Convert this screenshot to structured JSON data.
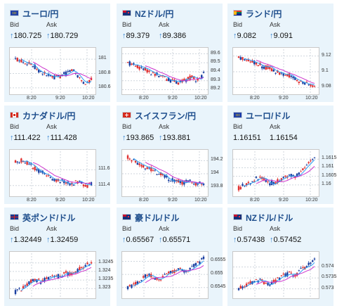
{
  "labels": {
    "bid": "Bid",
    "ask": "Ask"
  },
  "arrow": "↑",
  "colors": {
    "title": "#1d4d8c",
    "card_bg": "#e9f4fb",
    "ma_short": "#2a9df4",
    "ma_long": "#cc33cc",
    "candle_up": "#e03030",
    "candle_down": "#1a3fa0"
  },
  "cards": [
    {
      "title": "ユーロ/円",
      "flag": "eu-jp-flag",
      "bid": "180.725",
      "ask": "180.729",
      "up": true,
      "chart_data": {
        "type": "candlestick",
        "yticks": [
          "181",
          "180.8",
          "180.6"
        ],
        "xticks": [
          "8:20",
          "9:20",
          "10:20"
        ],
        "ylim": [
          180.55,
          181.1
        ],
        "trend": [
          181.0,
          180.98,
          180.95,
          180.9,
          180.82,
          180.78,
          180.74,
          180.76,
          180.8,
          180.86,
          180.76,
          180.65,
          180.72
        ]
      }
    },
    {
      "title": "NZドル/円",
      "flag": "nz-jp-flag",
      "bid": "89.379",
      "ask": "89.386",
      "up": true,
      "chart_data": {
        "type": "candlestick",
        "yticks": [
          "89.6",
          "89.5",
          "89.4",
          "89.3",
          "89.2"
        ],
        "xticks": [
          "8:20",
          "9:20",
          "10:20"
        ],
        "ylim": [
          89.18,
          89.62
        ],
        "trend": [
          89.5,
          89.48,
          89.44,
          89.42,
          89.38,
          89.36,
          89.32,
          89.3,
          89.28,
          89.3,
          89.34,
          89.3,
          89.38
        ]
      }
    },
    {
      "title": "ランド/円",
      "flag": "za-jp-flag",
      "bid": "9.082",
      "ask": "9.091",
      "up": true,
      "chart_data": {
        "type": "candlestick",
        "yticks": [
          "9.12",
          "9.1",
          "9.08"
        ],
        "xticks": [
          "8:20",
          "9:20",
          "10:20"
        ],
        "ylim": [
          9.075,
          9.125
        ],
        "trend": [
          9.118,
          9.116,
          9.114,
          9.11,
          9.106,
          9.104,
          9.1,
          9.098,
          9.095,
          9.09,
          9.086,
          9.084,
          9.082
        ]
      }
    },
    {
      "title": "カナダドル/円",
      "flag": "ca-jp-flag",
      "bid": "111.422",
      "ask": "111.428",
      "up": true,
      "chart_data": {
        "type": "candlestick",
        "yticks": [
          "111.6",
          "111.4"
        ],
        "xticks": [
          "8:20",
          "9:20",
          "10:20"
        ],
        "ylim": [
          111.3,
          111.8
        ],
        "trend": [
          111.7,
          111.72,
          111.68,
          111.62,
          111.58,
          111.52,
          111.48,
          111.46,
          111.44,
          111.42,
          111.45,
          111.38,
          111.42
        ]
      }
    },
    {
      "title": "スイスフラン/円",
      "flag": "ch-jp-flag",
      "bid": "193.865",
      "ask": "193.881",
      "up": true,
      "chart_data": {
        "type": "candlestick",
        "yticks": [
          "194.2",
          "194",
          "193.8"
        ],
        "xticks": [
          "8:20",
          "9:20",
          "10:20"
        ],
        "ylim": [
          193.7,
          194.3
        ],
        "trend": [
          194.25,
          194.2,
          194.15,
          194.1,
          194.05,
          194.0,
          193.95,
          193.9,
          193.88,
          193.86,
          193.9,
          193.84,
          193.86
        ]
      }
    },
    {
      "title": "ユーロ/ドル",
      "flag": "eu-us-flag",
      "bid": "1.16151",
      "ask": "1.16154",
      "up": false,
      "chart_data": {
        "type": "candlestick",
        "yticks": [
          "1.1615",
          "1.161",
          "1.1605",
          "1.16"
        ],
        "xticks": [
          "8:20",
          "9:20",
          "10:20"
        ],
        "ylim": [
          1.1595,
          1.1618
        ],
        "trend": [
          1.1598,
          1.16,
          1.1602,
          1.1604,
          1.1603,
          1.1601,
          1.1602,
          1.1604,
          1.1606,
          1.1605,
          1.1609,
          1.1612,
          1.1615
        ]
      }
    },
    {
      "title": "英ポンド/ドル",
      "flag": "gb-us-flag",
      "bid": "1.32449",
      "ask": "1.32459",
      "up": true,
      "chart_data": {
        "type": "candlestick",
        "yticks": [
          "1.3245",
          "1.324",
          "1.3235",
          "1.323"
        ],
        "xticks": [],
        "ylim": [
          1.3226,
          1.3249
        ],
        "trend": [
          1.3228,
          1.323,
          1.3233,
          1.3235,
          1.3234,
          1.3236,
          1.3238,
          1.3237,
          1.3239,
          1.3238,
          1.3241,
          1.3243,
          1.3245
        ]
      }
    },
    {
      "title": "豪ドル/ドル",
      "flag": "au-us-flag",
      "bid": "0.65567",
      "ask": "0.65571",
      "up": true,
      "chart_data": {
        "type": "candlestick",
        "yticks": [
          "0.6555",
          "0.655",
          "0.6545"
        ],
        "xticks": [],
        "ylim": [
          0.6542,
          0.6557
        ],
        "trend": [
          0.6545,
          0.6546,
          0.6548,
          0.655,
          0.6549,
          0.6548,
          0.655,
          0.6551,
          0.6552,
          0.6551,
          0.6553,
          0.6554,
          0.6556
        ]
      }
    },
    {
      "title": "NZドル/ドル",
      "flag": "nz-us-flag",
      "bid": "0.57438",
      "ask": "0.57452",
      "up": true,
      "chart_data": {
        "type": "candlestick",
        "yticks": [
          "0.574",
          "0.5735",
          "0.573"
        ],
        "xticks": [],
        "ylim": [
          0.5727,
          0.5745
        ],
        "trend": [
          0.573,
          0.5731,
          0.5733,
          0.5734,
          0.5733,
          0.5732,
          0.5734,
          0.5736,
          0.5737,
          0.5736,
          0.5739,
          0.5741,
          0.5744
        ]
      }
    }
  ]
}
